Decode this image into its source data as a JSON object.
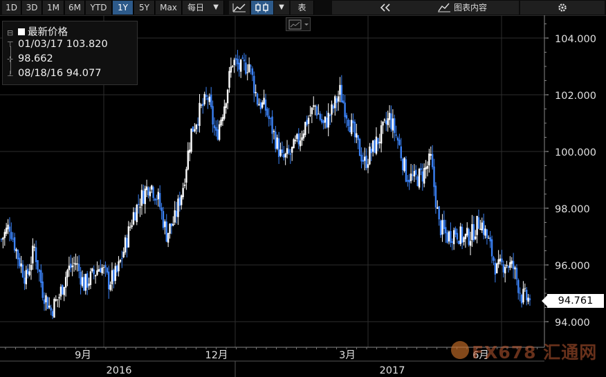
{
  "toolbar": {
    "ranges": [
      "1D",
      "3D",
      "1M",
      "6M",
      "YTD",
      "1Y",
      "5Y",
      "Max"
    ],
    "active_range": "1Y",
    "frequency": "每日",
    "view_label": "表",
    "chart_content_label": "图表内容"
  },
  "legend": {
    "title": "最新价格",
    "high": "01/03/17 103.820",
    "mid": "98.662",
    "low": "08/18/16 94.077"
  },
  "last_price_label": "94.761",
  "watermark": "FX678 汇通网",
  "colors": {
    "up": "#ffffff",
    "down": "#3b82f6",
    "grid": "#2e2e2e",
    "background": "#000000"
  },
  "chart_data": {
    "type": "candlestick",
    "title": "",
    "y_ticks": [
      "104.000",
      "102.000",
      "100.000",
      "98.000",
      "96.000",
      "94.000"
    ],
    "ylim": [
      93.5,
      104.8
    ],
    "x_month_labels": [
      "9月",
      "12月",
      "3月",
      "6月"
    ],
    "x_year_labels": [
      "2016",
      "2017"
    ],
    "grid": true,
    "series": [
      {
        "name": "最新价格",
        "weekly_close": [
          96.9,
          97.4,
          96.3,
          95.5,
          96.6,
          95.1,
          94.4,
          94.9,
          95.8,
          96.1,
          95.3,
          95.6,
          96.0,
          95.4,
          95.7,
          96.7,
          97.8,
          98.4,
          98.9,
          98.3,
          97.1,
          97.6,
          98.8,
          100.7,
          101.4,
          101.9,
          100.5,
          101.7,
          103.2,
          102.9,
          103.1,
          101.8,
          101.5,
          100.6,
          99.7,
          99.9,
          100.4,
          101.1,
          101.6,
          100.9,
          101.4,
          102.1,
          101.2,
          100.3,
          99.6,
          100.1,
          100.6,
          101.2,
          100.4,
          99.2,
          99.0,
          99.2,
          99.7,
          97.4,
          97.0,
          97.2,
          96.9,
          97.1,
          97.6,
          96.8,
          95.8,
          96.1,
          95.9,
          94.9,
          94.761
        ],
        "high": 103.82,
        "low": 94.077,
        "last": 94.761
      }
    ]
  }
}
